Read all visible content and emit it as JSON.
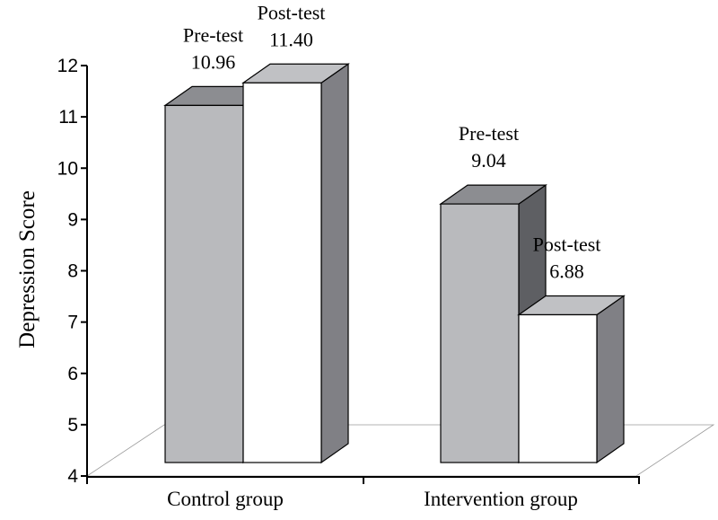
{
  "chart_data": {
    "type": "bar",
    "title": "",
    "xlabel": "",
    "ylabel": "Depression Score",
    "ylim": [
      4,
      12
    ],
    "yticks": [
      4,
      5,
      6,
      7,
      8,
      9,
      10,
      11,
      12
    ],
    "categories": [
      "Control group",
      "Intervention group"
    ],
    "series": [
      {
        "name": "Pre-test",
        "values": [
          10.96,
          9.04
        ]
      },
      {
        "name": "Post-test",
        "values": [
          11.4,
          6.88
        ]
      }
    ],
    "data_labels": [
      [
        "10.96",
        "9.04"
      ],
      [
        "11.40",
        "6.88"
      ]
    ],
    "style": "3d",
    "legend": "none",
    "colors": {
      "pre_front": "#b9babd",
      "pre_side": "#5e5f63",
      "pre_top": "#8c8d91",
      "post_front": "#ffffff",
      "post_side": "#808085",
      "post_top": "#c0c1c4",
      "outline": "#000000"
    }
  }
}
